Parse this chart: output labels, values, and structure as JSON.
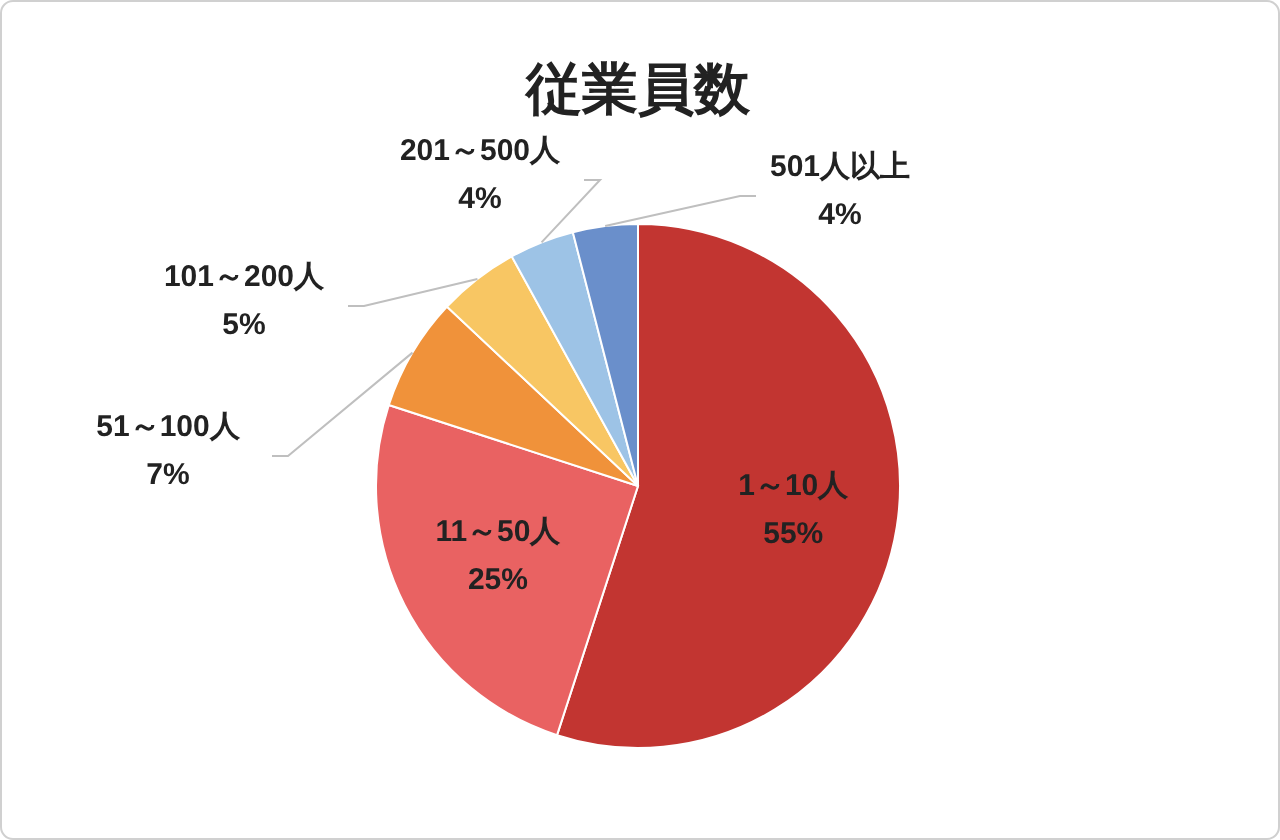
{
  "chart_data": {
    "type": "pie",
    "title": "従業員数",
    "categories": [
      "1～10人",
      "11～50人",
      "51～100人",
      "101～200人",
      "201～500人",
      "501人以上"
    ],
    "values": [
      55,
      25,
      7,
      5,
      4,
      4
    ],
    "colors": [
      "#c23531",
      "#e96262",
      "#f0923a",
      "#f8c663",
      "#9dc3e6",
      "#6a8fcb"
    ],
    "value_labels": [
      "55%",
      "25%",
      "7%",
      "5%",
      "4%",
      "4%"
    ]
  }
}
